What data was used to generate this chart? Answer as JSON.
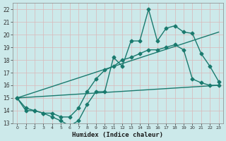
{
  "xlabel": "Humidex (Indice chaleur)",
  "bg_color": "#cce9ea",
  "grid_color": "#b8d8da",
  "line_color": "#1a7a6e",
  "ylim": [
    13,
    22.5
  ],
  "xlim": [
    -0.5,
    23.5
  ],
  "yticks": [
    13,
    14,
    15,
    16,
    17,
    18,
    19,
    20,
    21,
    22
  ],
  "xticks": [
    0,
    1,
    2,
    3,
    4,
    5,
    6,
    7,
    8,
    9,
    10,
    11,
    12,
    13,
    14,
    15,
    16,
    17,
    18,
    19,
    20,
    21,
    22,
    23
  ],
  "series": [
    {
      "x": [
        0,
        1,
        2,
        3,
        4,
        5,
        6,
        7,
        8,
        9,
        10,
        11,
        12,
        13,
        14,
        15,
        16,
        17,
        18,
        19,
        20,
        21,
        22,
        23
      ],
      "y": [
        15,
        14,
        14,
        13.8,
        13.5,
        13.2,
        12.8,
        13.2,
        14.5,
        15.5,
        15.5,
        18.2,
        17.5,
        19.5,
        19.5,
        22,
        19.5,
        20.5,
        20.7,
        20.2,
        20.1,
        18.5,
        17.5,
        16.3
      ],
      "marker": "D",
      "markersize": 2.5,
      "linewidth": 1.0,
      "has_marker": true
    },
    {
      "x": [
        0,
        1,
        2,
        3,
        4,
        5,
        6,
        7,
        8,
        9,
        10,
        11,
        12,
        13,
        14,
        15,
        16,
        17,
        18,
        19,
        20,
        21,
        22,
        23
      ],
      "y": [
        15,
        14.2,
        14,
        13.8,
        13.8,
        13.5,
        13.5,
        14.2,
        15.5,
        16.5,
        17.2,
        17.5,
        18.0,
        18.2,
        18.5,
        18.8,
        18.8,
        19.0,
        19.2,
        18.8,
        16.5,
        16.2,
        16.0,
        16.0
      ],
      "marker": "D",
      "markersize": 2.5,
      "linewidth": 1.0,
      "has_marker": true
    },
    {
      "x": [
        0,
        23
      ],
      "y": [
        15,
        20.2
      ],
      "marker": "None",
      "markersize": 0,
      "linewidth": 1.0,
      "has_marker": false
    },
    {
      "x": [
        0,
        23
      ],
      "y": [
        15,
        16.0
      ],
      "marker": "None",
      "markersize": 0,
      "linewidth": 1.0,
      "has_marker": false
    }
  ]
}
